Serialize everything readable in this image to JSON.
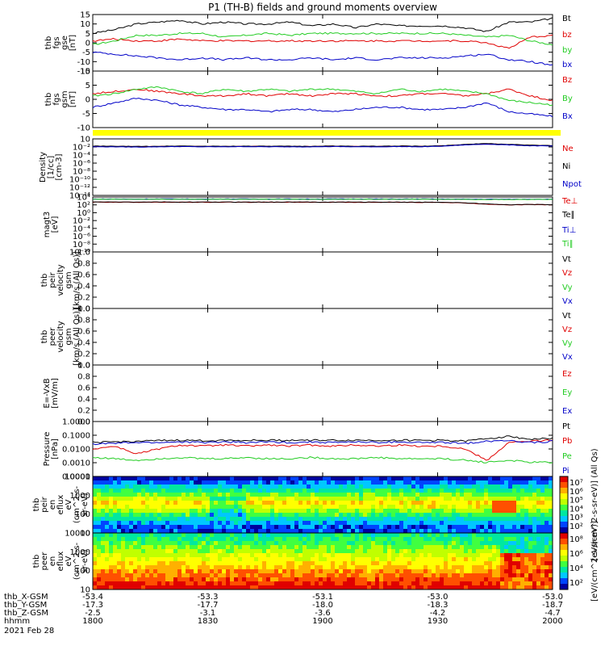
{
  "title": "P1 (TH-B) fields and ground moments overview",
  "colors": {
    "black": "#000000",
    "red": "#e00000",
    "green": "#22cc22",
    "blue": "#0000c8",
    "yellow": "#ffff00"
  },
  "chart_data": [
    {
      "id": "p1",
      "type": "line",
      "ylabel": [
        "thb",
        "fgs",
        "gse",
        "[nT]"
      ],
      "ylim": [
        -15,
        15
      ],
      "yticks": [
        "15",
        "10",
        "5",
        "0",
        "-5",
        "-10",
        "-15"
      ],
      "series": [
        {
          "name": "Bt",
          "color": "#000000",
          "values": [
            5,
            7,
            10,
            11,
            12,
            10,
            11,
            10,
            10,
            11,
            9,
            10,
            8,
            10,
            9,
            9,
            9,
            8,
            6,
            11,
            11,
            13
          ]
        },
        {
          "name": "bz",
          "color": "#e00000",
          "values": [
            1,
            2,
            1,
            1,
            2,
            1,
            1,
            1,
            1,
            1,
            1,
            1,
            1,
            1,
            1,
            1,
            1,
            1,
            0,
            -3,
            3,
            4
          ]
        },
        {
          "name": "by",
          "color": "#22cc22",
          "values": [
            -1,
            1,
            4,
            4,
            5,
            5,
            3,
            4,
            5,
            4,
            5,
            5,
            5,
            5,
            5,
            5,
            5,
            4,
            3,
            4,
            1,
            -1
          ]
        },
        {
          "name": "bx",
          "color": "#0000c8",
          "values": [
            -5,
            -6,
            -7,
            -8,
            -9,
            -8,
            -9,
            -8,
            -9,
            -9,
            -8,
            -9,
            -8,
            -9,
            -8,
            -8,
            -8,
            -7,
            -6,
            -9,
            -10,
            -12
          ]
        }
      ]
    },
    {
      "id": "p2",
      "type": "line",
      "ylabel": [
        "thb",
        "fgs",
        "gsm",
        "[nT]"
      ],
      "ylim": [
        -15,
        10
      ],
      "yticks": [
        "10",
        "5",
        "0",
        "-5",
        "-10"
      ],
      "series": [
        {
          "name": "Bz",
          "color": "#e00000",
          "values": [
            0,
            1,
            2,
            1,
            0,
            -1,
            -1,
            0,
            -1,
            0,
            -1,
            0,
            0,
            -1,
            -1,
            0,
            0,
            -1,
            0,
            2,
            -1,
            -3
          ]
        },
        {
          "name": "By",
          "color": "#22cc22",
          "values": [
            -1,
            0,
            2,
            3,
            1,
            0,
            2,
            1,
            2,
            1,
            2,
            2,
            1,
            0,
            2,
            1,
            2,
            1,
            0,
            -3,
            -4,
            -5
          ]
        },
        {
          "name": "Bx",
          "color": "#0000c8",
          "values": [
            -6,
            -4,
            -2,
            -3,
            -5,
            -6,
            -7,
            -7,
            -8,
            -7,
            -7,
            -8,
            -7,
            -6,
            -6,
            -7,
            -7,
            -6,
            -4,
            -8,
            -9,
            -10
          ]
        }
      ]
    },
    {
      "id": "p3",
      "type": "line",
      "ylabel": [
        "Density",
        "[1/cc]",
        "[cm-3]"
      ],
      "ylim": [
        1e-14,
        10
      ],
      "log": true,
      "yticks": [
        "10",
        "10⁻²",
        "10⁻⁴",
        "10⁻⁶",
        "10⁻⁸",
        "10⁻¹⁰",
        "10⁻¹²",
        "10⁻¹⁴"
      ],
      "series": [
        {
          "name": "Ne",
          "color": "#e00000",
          "values": [
            0.1,
            0.1,
            0.09,
            0.1,
            0.12,
            0.1,
            0.1,
            0.11,
            0.1,
            0.1,
            0.1,
            0.12,
            0.1,
            0.1,
            0.12,
            0.1,
            0.15,
            0.3,
            0.5,
            0.3,
            0.2,
            0.15
          ]
        },
        {
          "name": "Ni",
          "color": "#000000",
          "values": [
            0.12,
            0.11,
            0.1,
            0.11,
            0.13,
            0.11,
            0.11,
            0.12,
            0.11,
            0.11,
            0.11,
            0.13,
            0.11,
            0.11,
            0.13,
            0.11,
            0.16,
            0.35,
            0.6,
            0.35,
            0.22,
            0.16
          ]
        },
        {
          "name": "Npot",
          "color": "#0000c8",
          "values": [
            0.08,
            0.08,
            0.07,
            0.08,
            0.09,
            0.08,
            0.08,
            0.09,
            0.08,
            0.08,
            0.08,
            0.09,
            0.08,
            0.08,
            0.09,
            0.08,
            0.12,
            0.25,
            0.4,
            0.25,
            0.15,
            0.12
          ]
        }
      ]
    },
    {
      "id": "p4",
      "type": "line",
      "ylabel": [
        "magt3",
        "[eV]"
      ],
      "ylim": [
        1e-10,
        10000.0
      ],
      "log": true,
      "yticks": [
        "10⁴",
        "10²",
        "10⁰",
        "10⁻²",
        "10⁻⁴",
        "10⁻⁶",
        "10⁻⁸",
        "10⁻¹⁰"
      ],
      "series": [
        {
          "name": "Te⊥",
          "color": "#e00000",
          "values": [
            500,
            480,
            470,
            490,
            460,
            470,
            480,
            460,
            470,
            480,
            470,
            460,
            470,
            450,
            440,
            430,
            420,
            300,
            150,
            100,
            120,
            110
          ]
        },
        {
          "name": "Te∥",
          "color": "#000000",
          "values": [
            550,
            530,
            520,
            540,
            510,
            520,
            530,
            510,
            520,
            530,
            520,
            510,
            520,
            500,
            490,
            480,
            470,
            340,
            170,
            110,
            130,
            120
          ]
        },
        {
          "name": "Ti⊥",
          "color": "#0000c8",
          "values": [
            3000,
            3100,
            3000,
            3200,
            3100,
            3000,
            3100,
            3200,
            3000,
            3100,
            3000,
            3100,
            3200,
            3100,
            3000,
            3100,
            3000,
            2900,
            2800,
            2700,
            2800,
            2900
          ]
        },
        {
          "name": "Ti∥",
          "color": "#22cc22",
          "values": [
            2600,
            2700,
            2600,
            2800,
            2700,
            2600,
            2700,
            2800,
            2600,
            2700,
            2600,
            2700,
            2800,
            2700,
            2600,
            2700,
            2600,
            2500,
            2400,
            2300,
            2400,
            2500
          ]
        }
      ]
    },
    {
      "id": "p5",
      "type": "line",
      "ylabel": [
        "thb",
        "peir",
        "velocity",
        "gsm",
        "[km/s (All Qs)]"
      ],
      "ylim": [
        0,
        1
      ],
      "yticks": [
        "1.0",
        "0.8",
        "0.6",
        "0.4",
        "0.2",
        "0.0"
      ],
      "series": [
        {
          "name": "Vt",
          "color": "#000000",
          "values": []
        },
        {
          "name": "Vz",
          "color": "#e00000",
          "values": []
        },
        {
          "name": "Vy",
          "color": "#22cc22",
          "values": []
        },
        {
          "name": "Vx",
          "color": "#0000c8",
          "values": []
        }
      ]
    },
    {
      "id": "p6",
      "type": "line",
      "ylabel": [
        "thb",
        "peer",
        "velocity",
        "gsm",
        "[km/s (All Qs)]"
      ],
      "ylim": [
        0,
        1
      ],
      "yticks": [
        "1.0",
        "0.8",
        "0.6",
        "0.4",
        "0.2",
        "0.0"
      ],
      "series": [
        {
          "name": "Vt",
          "color": "#000000",
          "values": []
        },
        {
          "name": "Vz",
          "color": "#e00000",
          "values": []
        },
        {
          "name": "Vy",
          "color": "#22cc22",
          "values": []
        },
        {
          "name": "Vx",
          "color": "#0000c8",
          "values": []
        }
      ]
    },
    {
      "id": "p7",
      "type": "line",
      "ylabel": [
        "E=-VxB",
        "[mV/m]"
      ],
      "ylim": [
        0,
        1
      ],
      "yticks": [
        "1.0",
        "0.8",
        "0.6",
        "0.4",
        "0.2",
        "0.0"
      ],
      "series": [
        {
          "name": "Ez",
          "color": "#e00000",
          "values": []
        },
        {
          "name": "Ey",
          "color": "#22cc22",
          "values": []
        },
        {
          "name": "Ex",
          "color": "#0000c8",
          "values": []
        }
      ]
    },
    {
      "id": "p8",
      "type": "line",
      "ylabel": [
        "Pressure",
        "[nPa]"
      ],
      "ylim": [
        0.0004,
        1.0
      ],
      "log": true,
      "yticks": [
        "1.0000",
        "0.1000",
        "0.0100",
        "0.0010",
        "0.0001"
      ],
      "series": [
        {
          "name": "Pt",
          "color": "#000000",
          "values": [
            0.05,
            0.055,
            0.06,
            0.065,
            0.07,
            0.065,
            0.07,
            0.068,
            0.07,
            0.069,
            0.07,
            0.068,
            0.07,
            0.069,
            0.07,
            0.068,
            0.07,
            0.06,
            0.09,
            0.12,
            0.08,
            0.09
          ]
        },
        {
          "name": "Pb",
          "color": "#e00000",
          "values": [
            0.02,
            0.03,
            0.01,
            0.02,
            0.035,
            0.03,
            0.035,
            0.03,
            0.035,
            0.03,
            0.035,
            0.03,
            0.035,
            0.03,
            0.035,
            0.03,
            0.03,
            0.02,
            0.004,
            0.05,
            0.06,
            0.07
          ]
        },
        {
          "name": "Pe",
          "color": "#22cc22",
          "values": [
            0.006,
            0.005,
            0.004,
            0.005,
            0.006,
            0.005,
            0.005,
            0.006,
            0.005,
            0.005,
            0.006,
            0.005,
            0.005,
            0.006,
            0.005,
            0.005,
            0.005,
            0.004,
            0.003,
            0.004,
            0.003,
            0.003
          ]
        },
        {
          "name": "Pi",
          "color": "#0000c8",
          "values": [
            0.04,
            0.045,
            0.05,
            0.05,
            0.055,
            0.05,
            0.055,
            0.05,
            0.055,
            0.05,
            0.055,
            0.05,
            0.055,
            0.05,
            0.055,
            0.05,
            0.05,
            0.045,
            0.06,
            0.07,
            0.05,
            0.06
          ]
        }
      ]
    },
    {
      "id": "p9",
      "type": "heatmap",
      "ylabel": [
        "thb",
        "peir",
        "en",
        "eflux",
        "eV",
        "(cm^2-s-",
        "sr-eV)"
      ],
      "yticks": [
        "10000",
        "1000",
        "100",
        "10"
      ],
      "colorbar_label": "[eV/(cm^2-s-sr-eV)] (All Qs)",
      "colorbar_ticks": [
        "10⁷",
        "10⁶",
        "10⁵",
        "10⁴",
        "10³",
        "10²"
      ]
    },
    {
      "id": "p10",
      "type": "heatmap",
      "ylabel": [
        "thb",
        "peer",
        "en",
        "eflux",
        "eV",
        "(cm^2-s-",
        "sr-eV)"
      ],
      "yticks": [
        "10000",
        "1000",
        "100",
        "10"
      ],
      "colorbar_label": "[eV/(cm^2-s-sr-eV)]",
      "colorbar_ticks": [
        "10⁸",
        "10⁶",
        "10⁴",
        "10²"
      ]
    }
  ],
  "xaxis": {
    "rows": [
      {
        "label": "thb_X-GSM",
        "values": [
          "-53.4",
          "-53.3",
          "-53.1",
          "-53.0",
          "-53.0"
        ]
      },
      {
        "label": "thb_Y-GSM",
        "values": [
          "-17.3",
          "-17.7",
          "-18.0",
          "-18.3",
          "-18.7"
        ]
      },
      {
        "label": "thb_Z-GSM",
        "values": [
          "-2.5",
          "-3.1",
          "-3.6",
          "-4.2",
          "-4.7"
        ]
      },
      {
        "label": "hhmm",
        "values": [
          "1800",
          "1830",
          "1900",
          "1930",
          "2000"
        ]
      }
    ],
    "date": "2021 Feb 28"
  }
}
